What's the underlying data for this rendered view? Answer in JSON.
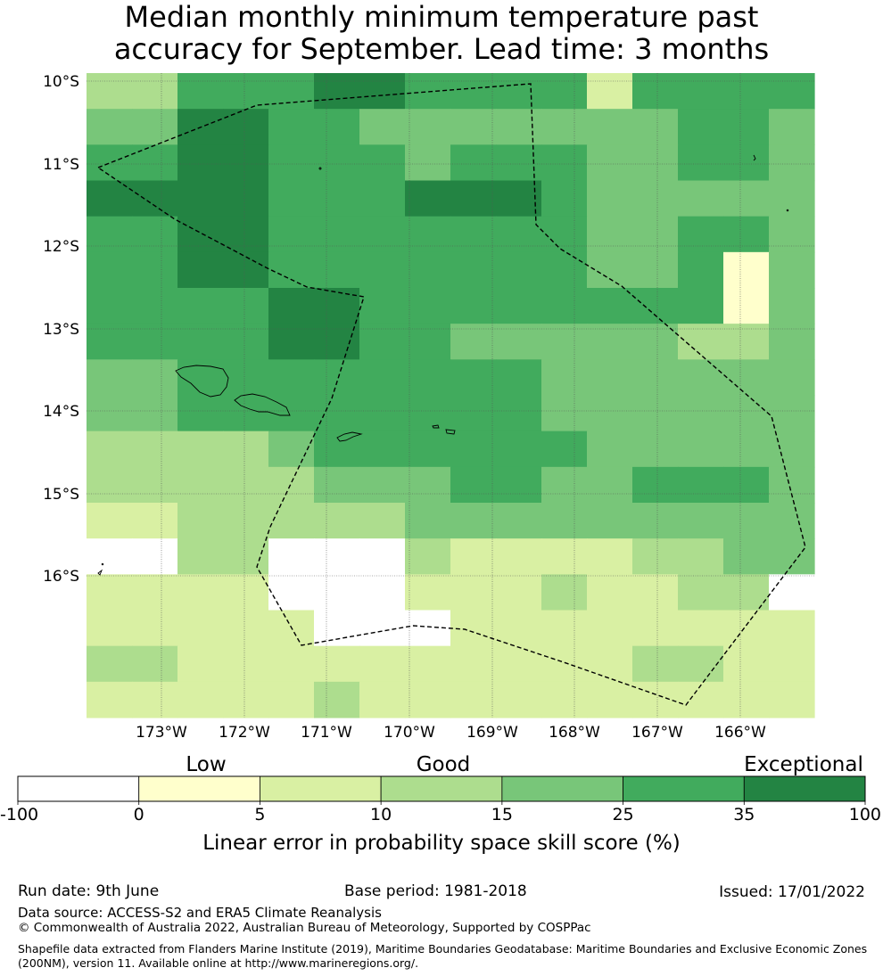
{
  "title": {
    "line1": "Median monthly minimum temperature past",
    "line2": "accuracy for September. Lead time: 3 months"
  },
  "map": {
    "lat_labels": [
      "10°S",
      "11°S",
      "12°S",
      "13°S",
      "14°S",
      "15°S",
      "16°S"
    ],
    "lon_labels": [
      "173°W",
      "172°W",
      "171°W",
      "170°W",
      "169°W",
      "168°W",
      "167°W",
      "166°W"
    ],
    "boundary_style": "dashed",
    "grid": true,
    "grid_rows": [
      [
        3,
        3,
        5,
        5,
        5,
        6,
        6,
        5,
        5,
        5,
        5,
        2,
        5,
        5,
        5,
        5
      ],
      [
        4,
        4,
        6,
        6,
        5,
        5,
        4,
        4,
        4,
        4,
        4,
        4,
        4,
        5,
        5,
        4
      ],
      [
        5,
        5,
        6,
        6,
        5,
        5,
        5,
        4,
        5,
        5,
        5,
        4,
        4,
        5,
        5,
        4
      ],
      [
        6,
        6,
        6,
        6,
        5,
        5,
        5,
        6,
        6,
        6,
        5,
        4,
        4,
        4,
        4,
        4
      ],
      [
        5,
        5,
        6,
        6,
        5,
        5,
        5,
        5,
        5,
        5,
        5,
        4,
        4,
        5,
        5,
        4
      ],
      [
        5,
        5,
        6,
        6,
        5,
        5,
        5,
        5,
        5,
        5,
        5,
        4,
        4,
        5,
        1,
        4
      ],
      [
        5,
        5,
        5,
        5,
        6,
        6,
        5,
        5,
        5,
        5,
        5,
        5,
        5,
        5,
        1,
        4
      ],
      [
        5,
        5,
        5,
        5,
        6,
        6,
        5,
        5,
        4,
        4,
        4,
        4,
        4,
        3,
        3,
        4
      ],
      [
        4,
        4,
        5,
        5,
        5,
        5,
        5,
        5,
        5,
        5,
        4,
        4,
        4,
        4,
        4,
        4
      ],
      [
        4,
        4,
        5,
        5,
        5,
        5,
        5,
        5,
        5,
        5,
        4,
        4,
        4,
        4,
        4,
        4
      ],
      [
        3,
        3,
        3,
        3,
        4,
        5,
        5,
        5,
        5,
        5,
        5,
        4,
        4,
        4,
        4,
        4
      ],
      [
        3,
        3,
        3,
        3,
        3,
        4,
        4,
        4,
        5,
        5,
        4,
        4,
        5,
        5,
        5,
        4
      ],
      [
        2,
        2,
        3,
        3,
        3,
        3,
        3,
        4,
        4,
        4,
        4,
        4,
        4,
        4,
        4,
        4
      ],
      [
        0,
        0,
        3,
        3,
        0,
        0,
        0,
        3,
        2,
        2,
        2,
        2,
        3,
        3,
        4,
        4
      ],
      [
        2,
        2,
        2,
        2,
        0,
        0,
        0,
        2,
        2,
        2,
        3,
        2,
        2,
        3,
        3,
        0
      ],
      [
        2,
        2,
        2,
        2,
        2,
        0,
        0,
        0,
        2,
        2,
        2,
        2,
        2,
        2,
        2,
        2
      ],
      [
        3,
        3,
        2,
        2,
        2,
        2,
        2,
        2,
        2,
        2,
        2,
        2,
        3,
        3,
        2,
        2
      ],
      [
        2,
        2,
        2,
        2,
        2,
        3,
        2,
        2,
        2,
        2,
        2,
        2,
        2,
        2,
        2,
        2
      ]
    ]
  },
  "legend": {
    "category_labels": [
      "Low",
      "Good",
      "Exceptional"
    ],
    "ticks": [
      "-100",
      "0",
      "5",
      "10",
      "15",
      "25",
      "35",
      "100"
    ],
    "colors": [
      "#ffffff",
      "#ffffcc",
      "#d9f0a3",
      "#addd8e",
      "#78c679",
      "#41ab5d",
      "#238443"
    ],
    "axis_label": "Linear error in probability space skill score (%)"
  },
  "footer": {
    "run_date": "Run date: 9th June",
    "base_period": "Base period: 1981-2018",
    "issued": "Issued: 17/01/2022",
    "data_source": "Data source: ACCESS-S2 and ERA5 Climate Reanalysis",
    "copyright": "© Commonwealth of Australia 2022, Australian Bureau of Meteorology, Supported by COSPPac",
    "shapefile_note": "Shapefile data extracted from Flanders Marine Institute (2019), Maritime Boundaries Geodatabase: Maritime Boundaries and Exclusive Economic Zones (200NM), version 11. Available online at http://www.marineregions.org/."
  }
}
